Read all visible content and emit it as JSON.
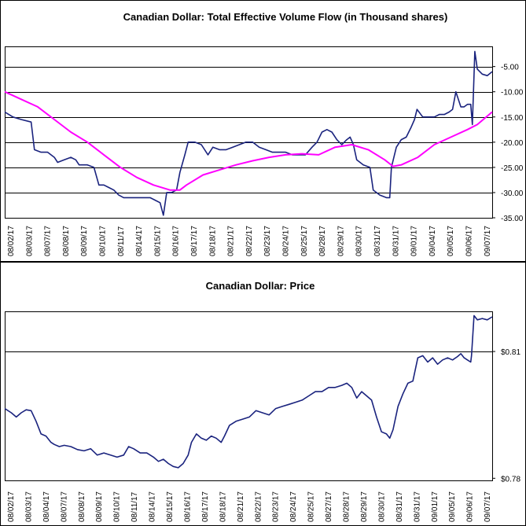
{
  "chart_data": [
    {
      "type": "line",
      "title": "Canadian Dollar: Total Effective Volume Flow (in Thousand shares)",
      "xlabel": "",
      "ylabel": "",
      "ylim": [
        -35,
        -1
      ],
      "y_ticks": [
        -5,
        -10,
        -15,
        -20,
        -25,
        -30,
        -35
      ],
      "y_tick_labels": [
        "-5.00",
        "-10.00",
        "-15.00",
        "-20.00",
        "-25.00",
        "-30.00",
        "-35.00"
      ],
      "y_gridlines": [
        -5,
        -10,
        -15,
        -20,
        -25,
        -30
      ],
      "grid": true,
      "x_ticks": [
        "08/02/17",
        "08/03/17",
        "08/07/17",
        "08/08/17",
        "08/09/17",
        "08/10/17",
        "08/11/17",
        "08/14/17",
        "08/15/17",
        "08/16/17",
        "08/17/17",
        "08/18/17",
        "08/21/17",
        "08/22/17",
        "08/23/17",
        "08/24/17",
        "08/25/17",
        "08/28/17",
        "08/29/17",
        "08/30/17",
        "08/31/17",
        "08/31/17",
        "09/01/17",
        "09/04/17",
        "09/05/17",
        "09/06/17",
        "09/07/17"
      ],
      "colors": {
        "series": "#1a237e",
        "moving_average": "#ff00ff",
        "gridline": "#000000"
      },
      "series": [
        {
          "points": [
            [
              0,
              -14
            ],
            [
              0.5,
              -15
            ],
            [
              1,
              -15.5
            ],
            [
              1.6,
              -16
            ],
            [
              1.8,
              -21.5
            ],
            [
              2.2,
              -22
            ],
            [
              2.6,
              -22
            ],
            [
              3,
              -23
            ],
            [
              3.2,
              -24
            ],
            [
              3.6,
              -23.5
            ],
            [
              4,
              -23
            ],
            [
              4.3,
              -23.5
            ],
            [
              4.5,
              -24.5
            ],
            [
              5,
              -24.5
            ],
            [
              5.4,
              -25
            ],
            [
              5.7,
              -28.5
            ],
            [
              6,
              -28.5
            ],
            [
              6.3,
              -29
            ],
            [
              6.6,
              -29.5
            ],
            [
              6.9,
              -30.5
            ],
            [
              7.2,
              -31
            ],
            [
              7.6,
              -31
            ],
            [
              8,
              -31
            ],
            [
              8.4,
              -31
            ],
            [
              8.8,
              -31
            ],
            [
              9.1,
              -31.5
            ],
            [
              9.4,
              -32
            ],
            [
              9.6,
              -34.5
            ],
            [
              9.8,
              -30
            ],
            [
              10.1,
              -30
            ],
            [
              10.4,
              -29.5
            ],
            [
              10.6,
              -26
            ],
            [
              10.9,
              -22.5
            ],
            [
              11.1,
              -20
            ],
            [
              11.5,
              -20
            ],
            [
              11.9,
              -20.5
            ],
            [
              12.3,
              -22.5
            ],
            [
              12.6,
              -21
            ],
            [
              13,
              -21.5
            ],
            [
              13.4,
              -21.5
            ],
            [
              13.8,
              -21
            ],
            [
              14.2,
              -20.5
            ],
            [
              14.6,
              -20
            ],
            [
              15,
              -20
            ],
            [
              15.4,
              -21
            ],
            [
              15.8,
              -21.5
            ],
            [
              16.2,
              -22
            ],
            [
              16.6,
              -22
            ],
            [
              17,
              -22
            ],
            [
              17.4,
              -22.5
            ],
            [
              17.8,
              -22.5
            ],
            [
              18.2,
              -22.5
            ],
            [
              18.6,
              -21
            ],
            [
              18.9,
              -20
            ],
            [
              19.2,
              -18
            ],
            [
              19.5,
              -17.5
            ],
            [
              19.8,
              -18
            ],
            [
              20.1,
              -19.5
            ],
            [
              20.4,
              -20.5
            ],
            [
              20.7,
              -19.5
            ],
            [
              20.9,
              -19
            ],
            [
              21.1,
              -20.5
            ],
            [
              21.3,
              -23.5
            ],
            [
              21.7,
              -24.5
            ],
            [
              22.1,
              -25
            ],
            [
              22.3,
              -29.5
            ],
            [
              22.7,
              -30.5
            ],
            [
              23.1,
              -31
            ],
            [
              23.3,
              -31
            ],
            [
              23.4,
              -25
            ],
            [
              23.7,
              -21
            ],
            [
              24,
              -19.5
            ],
            [
              24.3,
              -19
            ],
            [
              24.6,
              -17
            ],
            [
              24.8,
              -15.5
            ],
            [
              24.95,
              -13.5
            ],
            [
              25.3,
              -15
            ],
            [
              25.7,
              -15
            ],
            [
              26,
              -15
            ],
            [
              26.3,
              -14.5
            ],
            [
              26.6,
              -14.5
            ],
            [
              26.9,
              -14
            ],
            [
              27.1,
              -13.5
            ],
            [
              27.3,
              -10
            ],
            [
              27.6,
              -13
            ],
            [
              27.8,
              -13
            ],
            [
              28,
              -12.5
            ],
            [
              28.2,
              -12.5
            ],
            [
              28.3,
              -16.5
            ],
            [
              28.45,
              -2
            ],
            [
              28.6,
              -5.5
            ],
            [
              28.9,
              -6.5
            ],
            [
              29.2,
              -6.8
            ],
            [
              29.5,
              -6
            ]
          ]
        },
        {
          "points": [
            [
              0,
              -10
            ],
            [
              1,
              -11.5
            ],
            [
              2,
              -13
            ],
            [
              3,
              -15.5
            ],
            [
              4,
              -18
            ],
            [
              5,
              -20
            ],
            [
              6,
              -22.5
            ],
            [
              7,
              -25
            ],
            [
              8,
              -27
            ],
            [
              9,
              -28.5
            ],
            [
              10,
              -29.5
            ],
            [
              10.6,
              -29.5
            ],
            [
              11,
              -28.5
            ],
            [
              12,
              -26.5
            ],
            [
              13,
              -25.5
            ],
            [
              14,
              -24.5
            ],
            [
              15,
              -23.7
            ],
            [
              16,
              -23
            ],
            [
              17,
              -22.5
            ],
            [
              18,
              -22.3
            ],
            [
              19,
              -22.5
            ],
            [
              20,
              -21
            ],
            [
              21,
              -20.5
            ],
            [
              22,
              -21.5
            ],
            [
              23,
              -23.5
            ],
            [
              23.5,
              -24.8
            ],
            [
              24,
              -24.5
            ],
            [
              25,
              -23
            ],
            [
              26,
              -20.5
            ],
            [
              27,
              -19
            ],
            [
              28,
              -17.5
            ],
            [
              28.6,
              -16.5
            ],
            [
              29.5,
              -14
            ]
          ]
        }
      ]
    },
    {
      "type": "line",
      "title": "Canadian Dollar: Price",
      "xlabel": "",
      "ylabel": "",
      "ylim": [
        0.7795,
        0.8195
      ],
      "y_ticks": [
        0.81,
        0.78
      ],
      "y_tick_labels": [
        "$0.81",
        "$0.78"
      ],
      "y_gridlines": [
        0.81
      ],
      "grid": true,
      "x_ticks": [
        "08/02/17",
        "08/03/17",
        "08/04/17",
        "08/07/17",
        "08/08/17",
        "08/09/17",
        "08/10/17",
        "08/11/17",
        "08/14/17",
        "08/15/17",
        "08/16/17",
        "08/17/17",
        "08/18/17",
        "08/21/17",
        "08/22/17",
        "08/23/17",
        "08/24/17",
        "08/25/17",
        "08/27/17",
        "08/28/17",
        "08/29/17",
        "08/30/17",
        "08/31/17",
        "08/31/17",
        "09/01/17",
        "09/05/17",
        "09/06/17",
        "09/07/17"
      ],
      "colors": {
        "series": "#1a237e",
        "gridline": "#000000"
      },
      "series": [
        {
          "points": [
            [
              0,
              0.7965
            ],
            [
              0.4,
              0.7955
            ],
            [
              0.7,
              0.7945
            ],
            [
              1,
              0.7955
            ],
            [
              1.3,
              0.7962
            ],
            [
              1.6,
              0.796
            ],
            [
              1.9,
              0.7935
            ],
            [
              2.2,
              0.7905
            ],
            [
              2.5,
              0.79
            ],
            [
              2.8,
              0.7885
            ],
            [
              3,
              0.788
            ],
            [
              3.3,
              0.7875
            ],
            [
              3.6,
              0.7878
            ],
            [
              4,
              0.7875
            ],
            [
              4.4,
              0.7868
            ],
            [
              4.8,
              0.7865
            ],
            [
              5.2,
              0.787
            ],
            [
              5.6,
              0.7855
            ],
            [
              6,
              0.786
            ],
            [
              6.4,
              0.7855
            ],
            [
              6.8,
              0.785
            ],
            [
              7.2,
              0.7855
            ],
            [
              7.5,
              0.7875
            ],
            [
              7.8,
              0.787
            ],
            [
              8.2,
              0.786
            ],
            [
              8.6,
              0.786
            ],
            [
              9,
              0.785
            ],
            [
              9.3,
              0.784
            ],
            [
              9.6,
              0.7845
            ],
            [
              9.9,
              0.7835
            ],
            [
              10.2,
              0.7828
            ],
            [
              10.5,
              0.7825
            ],
            [
              10.8,
              0.7835
            ],
            [
              11.1,
              0.7855
            ],
            [
              11.3,
              0.7885
            ],
            [
              11.6,
              0.7905
            ],
            [
              11.9,
              0.7895
            ],
            [
              12.2,
              0.789
            ],
            [
              12.5,
              0.79
            ],
            [
              12.8,
              0.7895
            ],
            [
              13.1,
              0.7885
            ],
            [
              13.3,
              0.79
            ],
            [
              13.6,
              0.7925
            ],
            [
              14,
              0.7935
            ],
            [
              14.4,
              0.794
            ],
            [
              14.8,
              0.7945
            ],
            [
              15.2,
              0.796
            ],
            [
              15.6,
              0.7955
            ],
            [
              16,
              0.795
            ],
            [
              16.4,
              0.7965
            ],
            [
              16.8,
              0.797
            ],
            [
              17.2,
              0.7975
            ],
            [
              17.6,
              0.798
            ],
            [
              18,
              0.7985
            ],
            [
              18.4,
              0.7995
            ],
            [
              18.8,
              0.8005
            ],
            [
              19.2,
              0.8005
            ],
            [
              19.6,
              0.8015
            ],
            [
              20,
              0.8015
            ],
            [
              20.4,
              0.802
            ],
            [
              20.7,
              0.8025
            ],
            [
              21,
              0.8015
            ],
            [
              21.3,
              0.799
            ],
            [
              21.6,
              0.8005
            ],
            [
              21.9,
              0.7995
            ],
            [
              22.2,
              0.7985
            ],
            [
              22.5,
              0.7945
            ],
            [
              22.8,
              0.791
            ],
            [
              23.1,
              0.7905
            ],
            [
              23.3,
              0.7895
            ],
            [
              23.5,
              0.7915
            ],
            [
              23.8,
              0.797
            ],
            [
              24.1,
              0.8
            ],
            [
              24.4,
              0.8025
            ],
            [
              24.7,
              0.803
            ],
            [
              25.0,
              0.8085
            ],
            [
              25.3,
              0.809
            ],
            [
              25.6,
              0.8075
            ],
            [
              25.9,
              0.8085
            ],
            [
              26.2,
              0.807
            ],
            [
              26.5,
              0.808
            ],
            [
              26.8,
              0.8085
            ],
            [
              27.1,
              0.808
            ],
            [
              27.4,
              0.8088
            ],
            [
              27.6,
              0.8095
            ],
            [
              27.8,
              0.8085
            ],
            [
              28,
              0.808
            ],
            [
              28.2,
              0.8075
            ],
            [
              28.25,
              0.809
            ],
            [
              28.4,
              0.8185
            ],
            [
              28.6,
              0.8175
            ],
            [
              28.9,
              0.8178
            ],
            [
              29.2,
              0.8175
            ],
            [
              29.5,
              0.8182
            ]
          ]
        }
      ]
    }
  ]
}
